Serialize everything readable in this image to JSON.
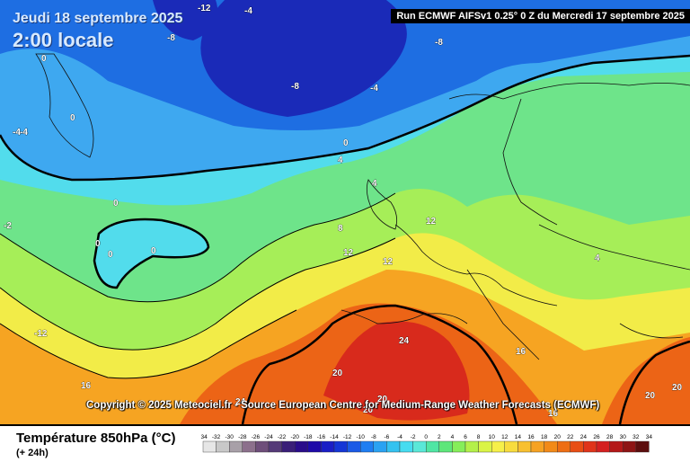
{
  "header": {
    "date": "Jeudi 18 septembre 2025",
    "local_time": "2:00 locale",
    "run_info": "Run ECMWF AIFSv1 0.25° 0 Z du Mercredi 17 septembre 2025"
  },
  "copyright": "Copyright © 2025 Meteociel.fr - Source European Centre for Medium-Range Weather Forecasts (ECMWF)",
  "footer": {
    "title": "Température 850hPa (°C)",
    "subtitle": "(+ 24h)"
  },
  "legend": {
    "ticks": [
      "-34",
      "-32",
      "-30",
      "-28",
      "-26",
      "-24",
      "-22",
      "-20",
      "-18",
      "-16",
      "-14",
      "-12",
      "-10",
      "-8",
      "-6",
      "-4",
      "-2",
      "0",
      "2",
      "4",
      "6",
      "8",
      "10",
      "12",
      "14",
      "16",
      "18",
      "20",
      "22",
      "24",
      "26",
      "28",
      "30",
      "32",
      "34"
    ],
    "colors": [
      "#e6e6e6",
      "#c8c8c8",
      "#a8a0a8",
      "#8c708c",
      "#6e4e7a",
      "#553a78",
      "#3a1e78",
      "#2a0c8a",
      "#1e0aa8",
      "#1a1ec6",
      "#1436d6",
      "#1a5ae6",
      "#1e7ef2",
      "#2aa2f2",
      "#34c2f0",
      "#46dcf0",
      "#5ae8d8",
      "#50e6a4",
      "#5ee67a",
      "#86ee5a",
      "#b4f04a",
      "#daf446",
      "#f6f04a",
      "#f8dc3e",
      "#f8c030",
      "#f6a222",
      "#f28a18",
      "#ee6e14",
      "#e84e14",
      "#e0341a",
      "#d42020",
      "#b41818",
      "#8e1414",
      "#5c0e0e"
    ]
  },
  "contour_labels": [
    {
      "text": "-12"
    },
    {
      "text": "-4"
    },
    {
      "text": "-8"
    },
    {
      "text": "-8"
    },
    {
      "text": "-4"
    },
    {
      "text": "-8"
    },
    {
      "text": "-4"
    },
    {
      "text": "0"
    },
    {
      "text": "0"
    },
    {
      "text": "0"
    },
    {
      "text": "-4"
    },
    {
      "text": "0"
    },
    {
      "text": "4"
    },
    {
      "text": "4"
    },
    {
      "text": "0"
    },
    {
      "text": "0"
    },
    {
      "text": "0"
    },
    {
      "text": "8"
    },
    {
      "text": "12"
    },
    {
      "text": "12"
    },
    {
      "text": "12"
    },
    {
      "text": "4"
    },
    {
      "text": "-12"
    },
    {
      "text": "16"
    },
    {
      "text": "24"
    },
    {
      "text": "20"
    },
    {
      "text": "16"
    },
    {
      "text": "20"
    },
    {
      "text": "20"
    },
    {
      "text": "16"
    },
    {
      "text": "20"
    },
    {
      "text": "24"
    },
    {
      "text": "20"
    },
    {
      "text": "-2"
    }
  ]
}
